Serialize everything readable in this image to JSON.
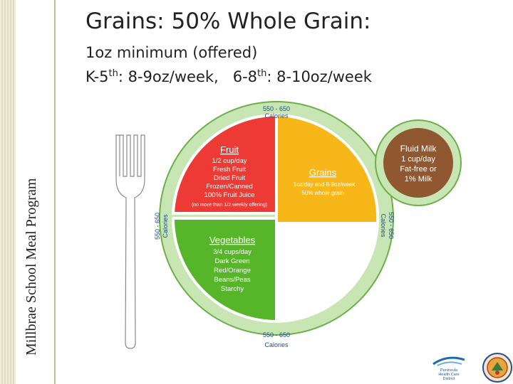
{
  "sidebar": {
    "label": "Millbrae School Meal Program"
  },
  "title": "Grains: 50% Whole Grain:",
  "subtitle1": "1oz minimum (offered)",
  "subtitle2": {
    "k5": "K-5",
    "th1": "th",
    "mid": ": 8-9oz/week,   6-8",
    "th2": "th",
    "end": ": 8-10oz/week"
  },
  "plate": {
    "calories_top": [
      "550 - 650",
      "Calories"
    ],
    "calories_left": [
      "550 - 650",
      "Calories"
    ],
    "calories_right": [
      "550 - 650",
      "Calories"
    ],
    "calories_bottom": [
      "550 - 650",
      "Calories"
    ],
    "fruit": {
      "title": "Fruit",
      "lines": [
        "1/2 cup/day",
        "Fresh Fruit",
        "Dried Fruit",
        "Frozen/Canned",
        "100% Fruit Juice",
        "(no more than 1/2 weekly offering)"
      ],
      "color": "#ee3a35"
    },
    "grains": {
      "title": "Grains",
      "lines": [
        "1oz/day and 8-9oz/week",
        "50% whole grain"
      ],
      "color": "#f7b718"
    },
    "vegetables": {
      "title": "Vegetables",
      "lines": [
        "3/4 cups/day",
        "Dark Green",
        "Red/Orange",
        "Beans/Peas",
        "Starchy"
      ],
      "color": "#57b52a"
    },
    "milk": {
      "lines": [
        "Fluid Milk",
        "1 cup/day",
        "Fat-free or",
        "1% Milk"
      ],
      "color": "#8f5830"
    },
    "rim_color": "#c8e6b4"
  },
  "logo_peninsula": [
    "Peninsula",
    "Health Care",
    "District"
  ]
}
